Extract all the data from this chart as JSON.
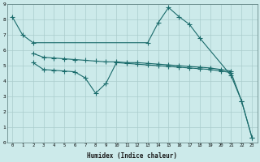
{
  "xlabel": "Humidex (Indice chaleur)",
  "bg_color": "#cceaea",
  "grid_color": "#aacccc",
  "line_color": "#1a6b6b",
  "xlim": [
    -0.5,
    23.5
  ],
  "ylim": [
    0,
    9
  ],
  "xticks": [
    0,
    1,
    2,
    3,
    4,
    5,
    6,
    7,
    8,
    9,
    10,
    11,
    12,
    13,
    14,
    15,
    16,
    17,
    18,
    19,
    20,
    21,
    22,
    23
  ],
  "yticks": [
    0,
    1,
    2,
    3,
    4,
    5,
    6,
    7,
    8,
    9
  ],
  "line1_x": [
    0,
    1,
    2,
    13,
    14,
    15,
    16,
    17,
    18,
    21,
    22,
    23
  ],
  "line1_y": [
    8.2,
    7.0,
    6.5,
    6.5,
    7.8,
    8.8,
    8.2,
    7.7,
    6.8,
    4.35,
    2.7,
    0.3
  ],
  "line2_x": [
    2,
    3,
    4,
    5,
    6,
    7,
    8,
    9,
    10,
    11,
    12,
    13,
    14,
    15,
    16,
    17,
    18,
    19,
    20,
    21
  ],
  "line2_y": [
    5.8,
    5.55,
    5.5,
    5.45,
    5.4,
    5.35,
    5.3,
    5.25,
    5.25,
    5.2,
    5.2,
    5.15,
    5.1,
    5.05,
    5.0,
    4.95,
    4.9,
    4.85,
    4.75,
    4.65
  ],
  "line3_x": [
    2,
    3,
    4,
    5,
    6,
    7,
    8,
    9,
    10,
    11,
    12,
    13,
    14,
    15,
    16,
    17,
    18,
    19,
    20,
    21,
    22,
    23
  ],
  "line3_y": [
    5.2,
    4.75,
    4.7,
    4.65,
    4.6,
    4.2,
    3.2,
    3.85,
    5.2,
    5.15,
    5.1,
    5.05,
    5.0,
    4.95,
    4.9,
    4.85,
    4.8,
    4.75,
    4.65,
    4.55,
    2.7,
    0.3
  ]
}
